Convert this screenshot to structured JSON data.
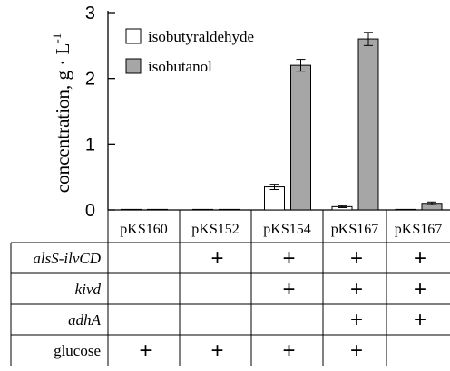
{
  "chart_data": {
    "type": "bar",
    "title": "",
    "ylabel": "concentration, g · L",
    "ylabel_superscript": "-1",
    "ylim": [
      0,
      3
    ],
    "yticks": [
      "0",
      "1",
      "2",
      "3"
    ],
    "categories": [
      "pKS160",
      "pKS152",
      "pKS154",
      "pKS167",
      "pKS167"
    ],
    "series": [
      {
        "name": "isobutyraldehyde",
        "color": "#ffffff",
        "values": [
          0.0,
          0.0,
          0.35,
          0.05,
          0.0
        ],
        "errors": [
          0.0,
          0.0,
          0.04,
          0.015,
          0.0
        ]
      },
      {
        "name": "isobutanol",
        "color": "#a6a6a6",
        "values": [
          0.0,
          0.0,
          2.2,
          2.6,
          0.1
        ],
        "errors": [
          0.0,
          0.0,
          0.09,
          0.1,
          0.02
        ]
      }
    ],
    "legend_position": "top-left"
  },
  "table": {
    "rows": [
      {
        "label": "alsS-ilvCD",
        "italic": true,
        "marks": [
          "",
          "+",
          "+",
          "+",
          "+"
        ]
      },
      {
        "label": "kivd",
        "italic": true,
        "marks": [
          "",
          "",
          "+",
          "+",
          "+"
        ]
      },
      {
        "label": "adhA",
        "italic": true,
        "marks": [
          "",
          "",
          "",
          "+",
          "+"
        ]
      },
      {
        "label": "glucose",
        "italic": false,
        "marks": [
          "+",
          "+",
          "+",
          "+",
          ""
        ]
      }
    ]
  }
}
